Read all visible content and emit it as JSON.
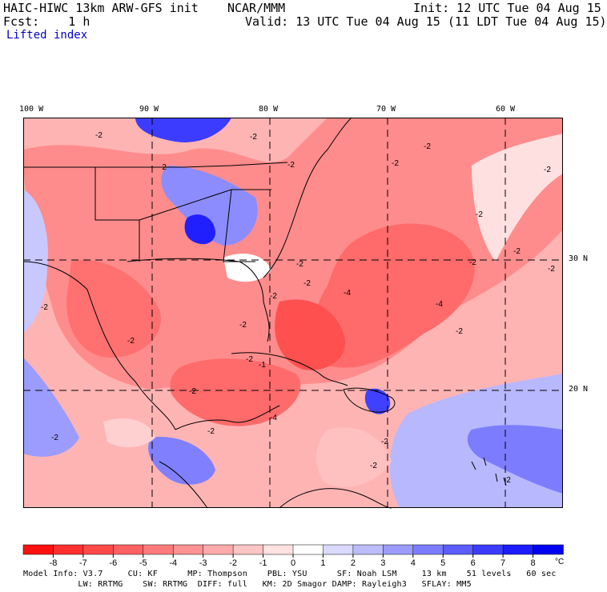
{
  "header": {
    "title": "HAIC-HIWC 13km ARW-GFS init    NCAR/MMM",
    "init": "Init: 12 UTC Tue 04 Aug 15",
    "fcst": "Fcst:    1 h",
    "valid": "Valid: 13 UTC Tue 04 Aug 15 (11 LDT Tue 04 Aug 15)",
    "field": "Lifted index"
  },
  "map": {
    "lon_labels": [
      "100 W",
      "90 W",
      "80 W",
      "70 W",
      "60 W"
    ],
    "lat_labels": [
      "30 N",
      "20 N"
    ],
    "contour_labels": [
      "-2",
      "-2",
      "-2",
      "-2",
      "-2",
      "-2",
      "-2",
      "-2",
      "-2",
      "-2",
      "-2",
      "-2",
      "-2",
      "-4",
      "-4",
      "-2",
      "-2",
      "-2",
      "-1",
      "-2",
      "-2",
      "-2",
      "-2",
      "-4",
      "-2",
      "-2",
      "-2",
      "-2",
      "-2"
    ],
    "colors": {
      "strong_negative": "#ff0000",
      "negative": "#ff6060",
      "weak_negative": "#ffc8c8",
      "neutral": "#ffffff",
      "weak_positive": "#c8c8ff",
      "positive": "#6060ff",
      "strong_positive": "#0000ff"
    }
  },
  "colorbar": {
    "tick_labels": [
      "-8",
      "-7",
      "-6",
      "-5",
      "-4",
      "-3",
      "-2",
      "-1",
      "0",
      "1",
      "2",
      "3",
      "4",
      "5",
      "6",
      "7",
      "8"
    ],
    "unit": "°C",
    "colors": [
      "#ff1010",
      "#ff3030",
      "#ff4a4a",
      "#ff6262",
      "#ff7a7a",
      "#ff9292",
      "#ffaaaa",
      "#ffc4c4",
      "#ffe2e2",
      "#ffffff",
      "#dadaff",
      "#bcbcff",
      "#9c9cff",
      "#7c7cff",
      "#5c5cff",
      "#3c3cff",
      "#1c1cff",
      "#0000f0"
    ]
  },
  "footer": {
    "line1": "Model Info: V3.7     CU: KF      MP: Thompson    PBL: YSU      SF: Noah LSM     13 km    51 levels   60 sec",
    "line2": "           LW: RRTMG    SW: RRTMG  DIFF: full   KM: 2D Smagor DAMP: Rayleigh3   SFLAY: MM5"
  }
}
